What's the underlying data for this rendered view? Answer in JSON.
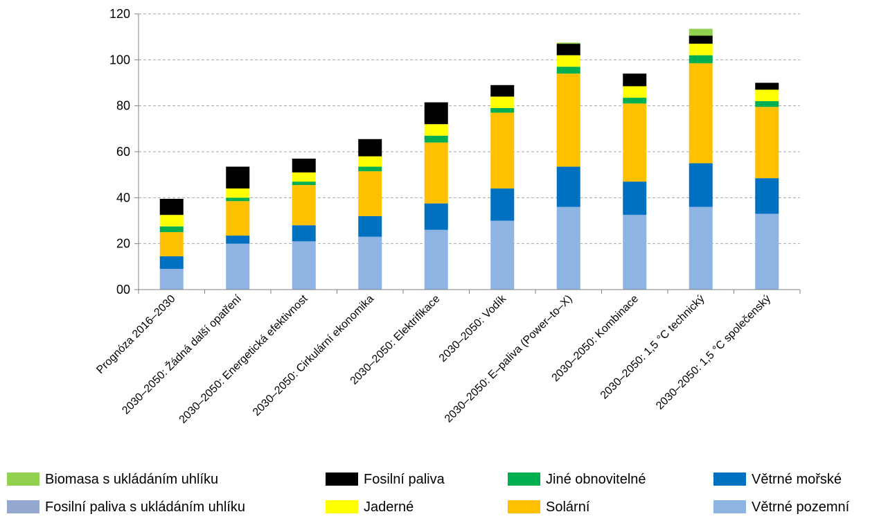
{
  "chart_data": {
    "type": "bar",
    "stacked": true,
    "title": "",
    "xlabel": "",
    "ylabel": "",
    "ylim": [
      0,
      120
    ],
    "yticks": [
      0,
      20,
      40,
      60,
      80,
      100,
      120
    ],
    "ytick_labels": [
      "00",
      "20",
      "40",
      "60",
      "80",
      "100",
      "120"
    ],
    "grid": true,
    "legend_position": "bottom",
    "categories": [
      "Prognóza 2016–2030",
      "2030–2050: Žádná další opatření",
      "2030–2050: Energetická efektivnost",
      "2030–2050: Cirkulární ekonomika",
      "2030–2050: Elektrifikace",
      "2030–2050: Vodík",
      "2030–2050: E–paliva (Power–to–X)",
      "2030–2050: Kombinace",
      "2030–2050: 1,5 °C technický",
      "2030–2050: 1,5 °C společenský"
    ],
    "series": [
      {
        "name": "Větrné pozemní",
        "color": "#8eb4e3",
        "values": [
          9,
          20,
          21,
          23,
          26,
          30,
          36,
          32.5,
          36,
          33
        ]
      },
      {
        "name": "Větrné mořské",
        "color": "#0070c0",
        "values": [
          5.5,
          3.5,
          7,
          9,
          11.5,
          14,
          17.5,
          14.5,
          19,
          15.5
        ]
      },
      {
        "name": "Solární",
        "color": "#ffc000",
        "values": [
          10.5,
          15,
          17.5,
          19.5,
          26.5,
          33,
          40.5,
          34,
          43.5,
          31
        ]
      },
      {
        "name": "Jiné obnovitelné",
        "color": "#00b050",
        "values": [
          2.5,
          1.5,
          1.5,
          2,
          3,
          2,
          3,
          2.5,
          3.5,
          2.5
        ]
      },
      {
        "name": "Jaderné",
        "color": "#ffff00",
        "values": [
          5,
          4,
          4,
          4.5,
          5,
          5,
          5,
          5,
          5,
          5
        ]
      },
      {
        "name": "Fosilní paliva",
        "color": "#000000",
        "values": [
          7,
          9.5,
          6,
          7.5,
          9.5,
          5,
          5,
          5.5,
          3.5,
          3
        ]
      },
      {
        "name": "Fosilní paliva s ukládáním uhlíku",
        "color": "#95a9d0",
        "values": [
          0,
          0,
          0,
          0,
          0,
          0,
          0,
          0,
          0,
          0
        ]
      },
      {
        "name": "Biomasa s ukládáním uhlíku",
        "color": "#92d050",
        "values": [
          0,
          0,
          0,
          0,
          0,
          0,
          0.5,
          0,
          3,
          0
        ]
      }
    ],
    "legend_order": [
      "Biomasa s ukládáním uhlíku",
      "Fosilní paliva",
      "Jiné obnovitelné",
      "Větrné mořské",
      "Fosilní paliva s ukládáním uhlíku",
      "Jaderné",
      "Solární",
      "Větrné pozemní"
    ],
    "colors": {
      "grid": "#a6a6a6",
      "axis": "#808080"
    }
  }
}
